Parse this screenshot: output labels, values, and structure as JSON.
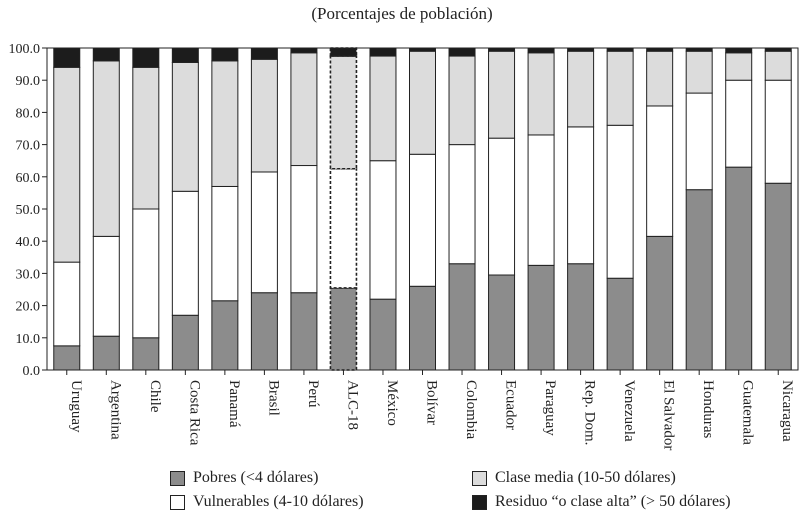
{
  "chart_data": {
    "type": "bar",
    "stacked": true,
    "title": "(Porcentajes de población)",
    "xlabel": "",
    "ylabel": "",
    "ylim": [
      0,
      100
    ],
    "yticks": [
      "0.0",
      "10.0",
      "20.0",
      "30.0",
      "40.0",
      "50.0",
      "60.0",
      "70.0",
      "80.0",
      "90.0",
      "100.0"
    ],
    "categories": [
      "Uruguay",
      "Argentina",
      "Chile",
      "Costa Rica",
      "Panamá",
      "Brasil",
      "Perú",
      "ALC-18",
      "México",
      "Bolívar",
      "Colombia",
      "Ecuador",
      "Paraguay",
      "Rep. Dom.",
      "Venezuela",
      "El Salvador",
      "Honduras",
      "Guatemala",
      "Nicaragua"
    ],
    "highlight_category": "ALC-18",
    "series": [
      {
        "name": "Pobres (<4 dólares)",
        "color": "#8c8c8c",
        "values": [
          7.5,
          10.5,
          10.0,
          17.0,
          21.5,
          24.0,
          24.0,
          25.5,
          22.0,
          26.0,
          33.0,
          29.5,
          32.5,
          33.0,
          28.5,
          41.5,
          56.0,
          63.0,
          58.0
        ]
      },
      {
        "name": "Vulnerables (4-10 dólares)",
        "color": "#ffffff",
        "values": [
          26.0,
          31.0,
          40.0,
          38.5,
          35.5,
          37.5,
          39.5,
          37.0,
          43.0,
          41.0,
          37.0,
          42.5,
          40.5,
          42.5,
          47.5,
          40.5,
          30.0,
          27.0,
          32.0
        ]
      },
      {
        "name": "Clase media (10-50 dólares)",
        "color": "#dcdcdc",
        "values": [
          60.5,
          54.5,
          44.0,
          40.0,
          39.0,
          35.0,
          35.0,
          35.0,
          32.5,
          32.0,
          27.5,
          27.0,
          25.5,
          23.5,
          23.0,
          17.0,
          13.0,
          8.5,
          9.0
        ]
      },
      {
        "name": "Residuo “o clase alta” (> 50 dólares)",
        "color": "#1c1c1c",
        "values": [
          6.0,
          4.0,
          6.0,
          4.5,
          4.0,
          3.5,
          1.5,
          2.5,
          2.5,
          1.0,
          2.5,
          1.0,
          1.5,
          1.0,
          1.0,
          1.0,
          1.0,
          1.5,
          1.0
        ]
      }
    ],
    "legend": {
      "placement": "bottom",
      "entries": [
        {
          "label": "Pobres (<4 dólares)",
          "color": "#8c8c8c"
        },
        {
          "label": "Clase media (10-50 dólares)",
          "color": "#dcdcdc"
        },
        {
          "label": "Vulnerables (4-10 dólares)",
          "color": "#ffffff"
        },
        {
          "label": "Residuo “o clase alta” (> 50 dólares)",
          "color": "#1c1c1c"
        }
      ]
    }
  }
}
